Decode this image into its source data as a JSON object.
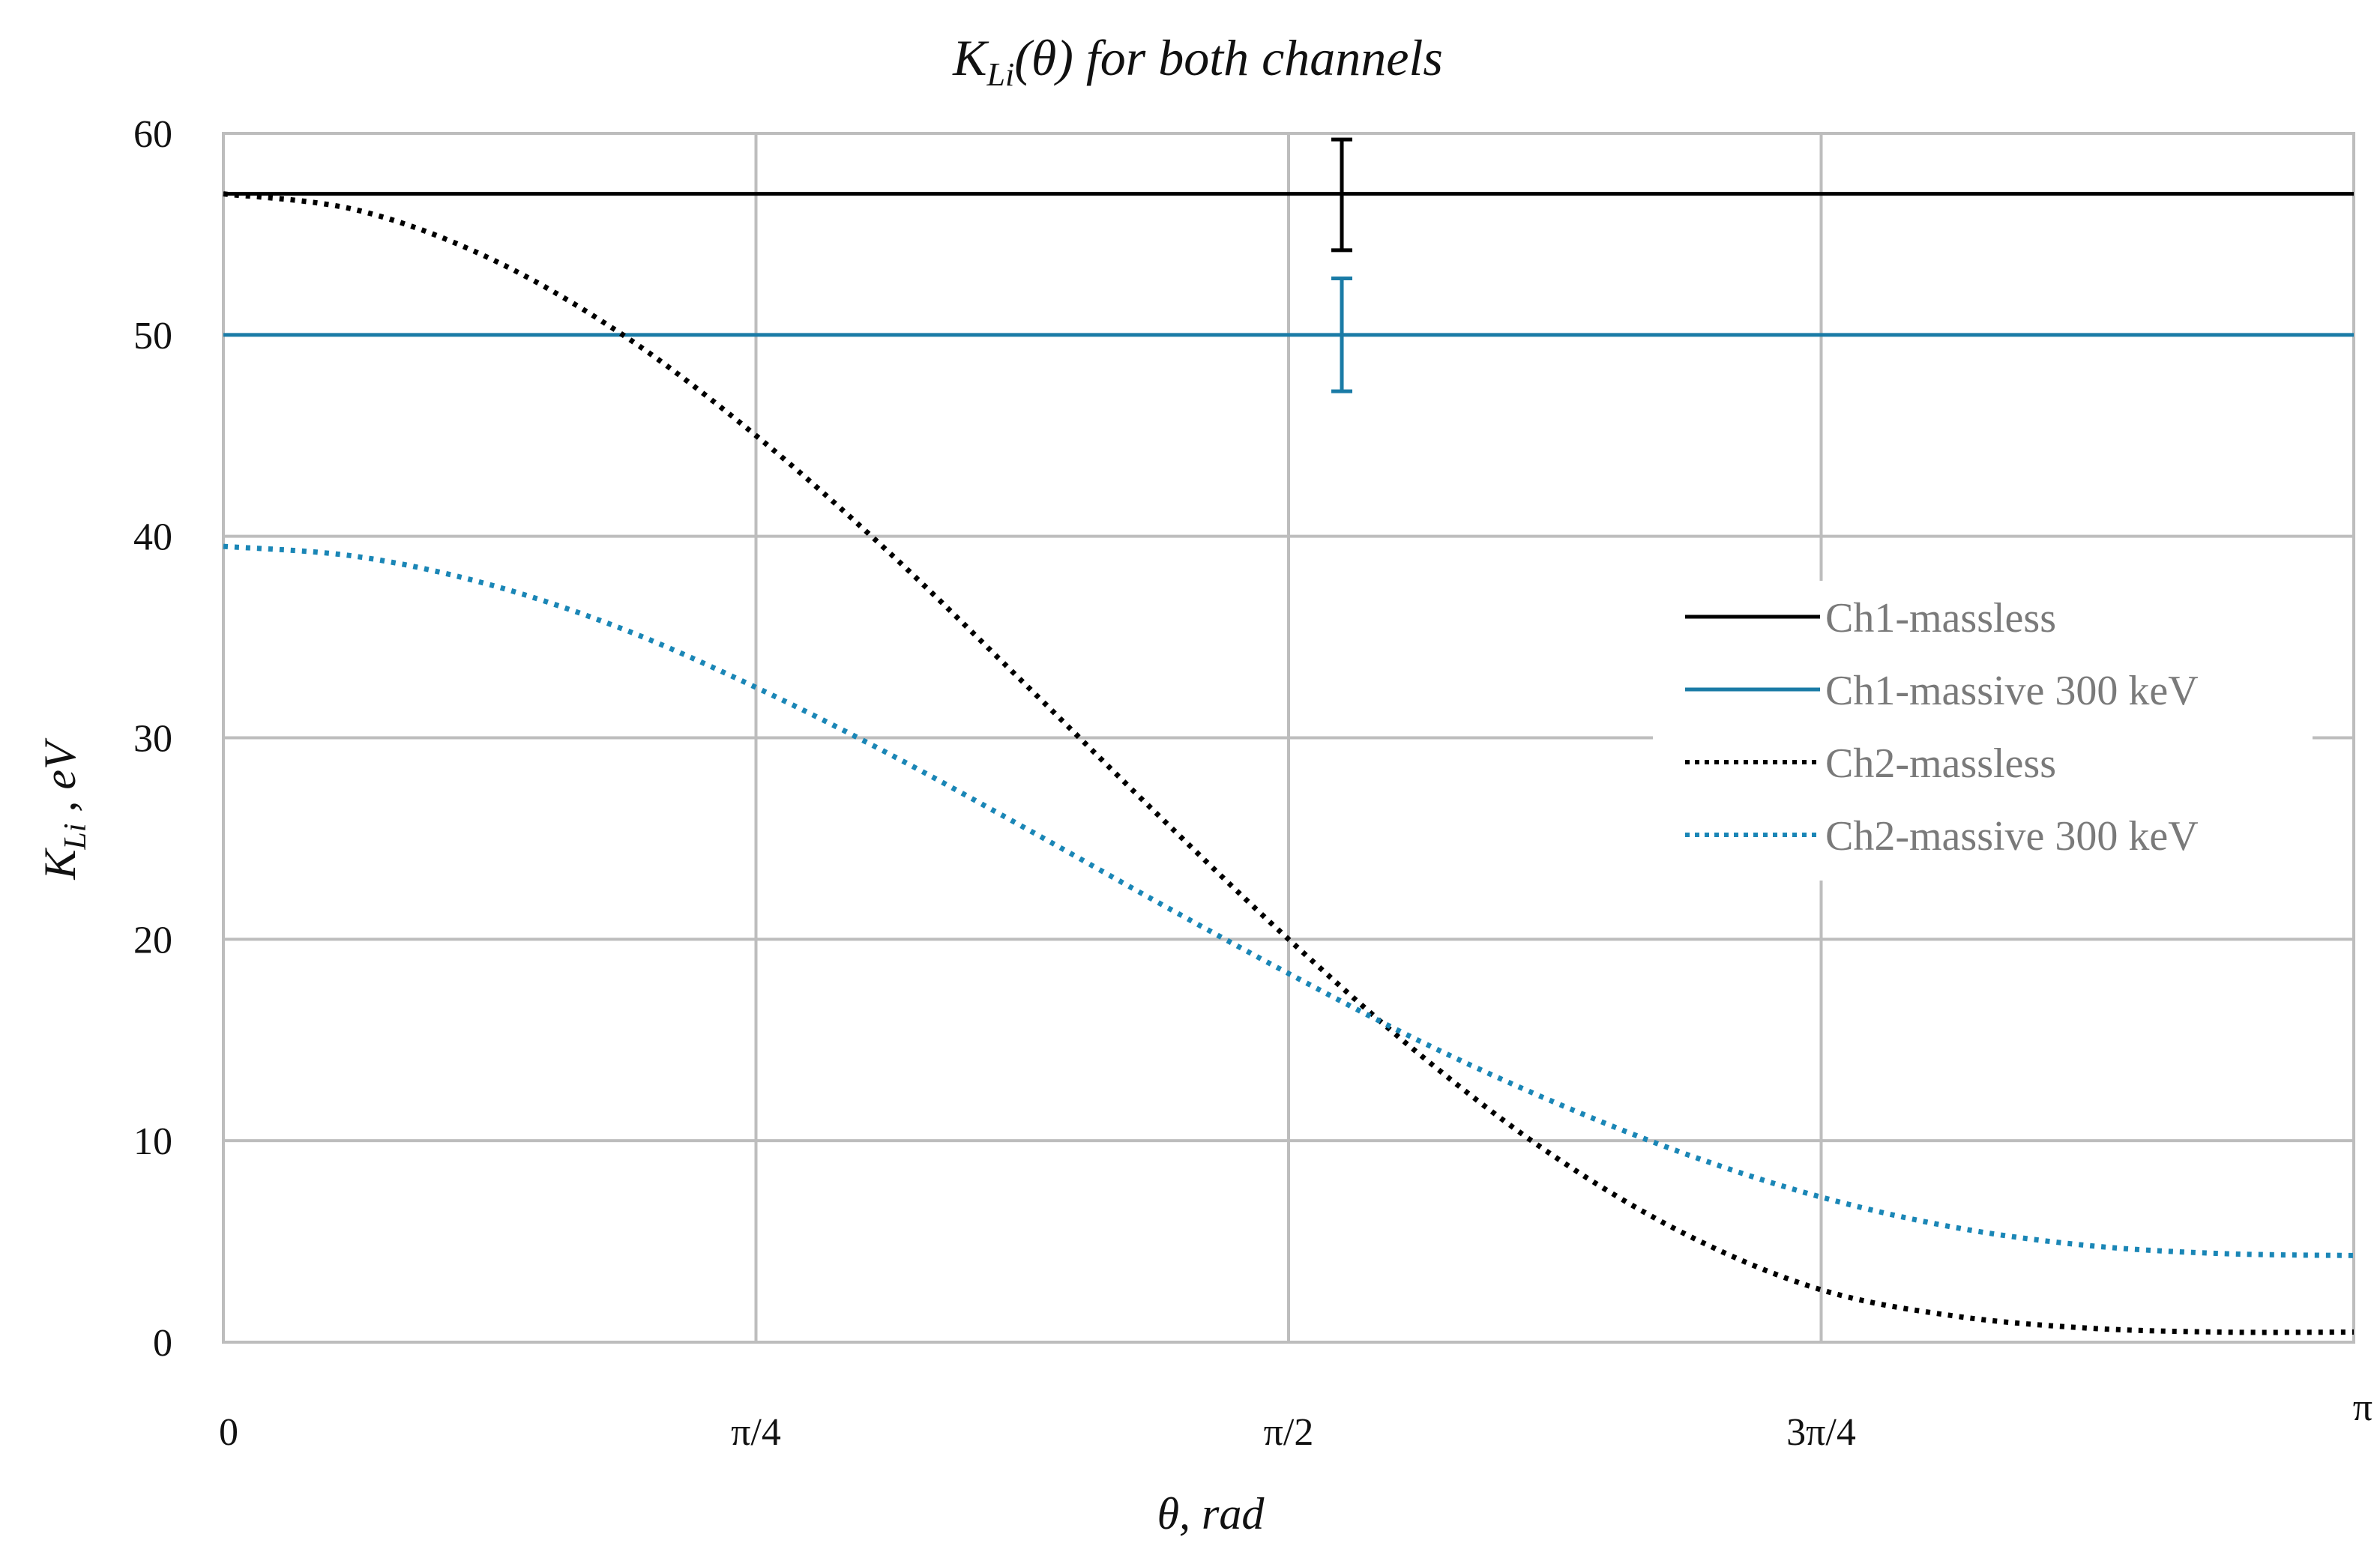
{
  "chart_data": {
    "type": "line",
    "title": "K_Li(θ) for both channels",
    "title_main": "K",
    "title_sub": "Li",
    "title_rest": "(θ) for both channels",
    "xlabel": "θ, rad",
    "ylabel_main": "K",
    "ylabel_sub": "Li",
    "ylabel_rest": " , eV",
    "xlim": [
      0,
      3.14159
    ],
    "ylim": [
      0,
      60
    ],
    "x_ticks": [
      {
        "value": 0,
        "label": "0"
      },
      {
        "value": 0.7854,
        "label": "π/4"
      },
      {
        "value": 1.5708,
        "label": "π/2"
      },
      {
        "value": 2.3562,
        "label": "3π/4"
      },
      {
        "value": 3.14159,
        "label": "π"
      }
    ],
    "y_ticks": [
      {
        "value": 0,
        "label": "0"
      },
      {
        "value": 10,
        "label": "10"
      },
      {
        "value": 20,
        "label": "20"
      },
      {
        "value": 30,
        "label": "30"
      },
      {
        "value": 40,
        "label": "40"
      },
      {
        "value": 50,
        "label": "50"
      },
      {
        "value": 60,
        "label": "60"
      }
    ],
    "grid": true,
    "legend_position": "right",
    "series": [
      {
        "name": "Ch1-massless",
        "color": "#000000",
        "style": "solid",
        "x": [
          0,
          3.14159
        ],
        "y": [
          57,
          57
        ],
        "error_bar": {
          "x": 1.6493,
          "low": 54.2,
          "high": 59.7
        }
      },
      {
        "name": "Ch1-massive 300 keV",
        "color": "#1a7ba6",
        "style": "solid",
        "x": [
          0,
          3.14159
        ],
        "y": [
          50,
          50
        ],
        "error_bar": {
          "x": 1.6493,
          "low": 47.2,
          "high": 52.8
        }
      },
      {
        "name": "Ch2-massless",
        "color": "#000000",
        "style": "dotted",
        "x": [
          0,
          0.1963,
          0.3927,
          0.589,
          0.7854,
          0.9817,
          1.1781,
          1.3744,
          1.5708,
          1.7671,
          1.9635,
          2.1598,
          2.3562,
          2.5525,
          2.7489,
          2.9452,
          3.14159
        ],
        "y": [
          57.0,
          56.2,
          53.8,
          50.0,
          45.0,
          39.2,
          32.8,
          26.3,
          20.0,
          14.2,
          9.2,
          5.3,
          2.6,
          1.3,
          0.7,
          0.5,
          0.5
        ],
        "note_hidden": true
      },
      {
        "name": "Ch2-massive 300 keV",
        "color": "#1a86b6",
        "style": "dotted",
        "x": [
          0,
          0.1963,
          0.3927,
          0.589,
          0.7854,
          0.9817,
          1.1781,
          1.3744,
          1.5708,
          1.7671,
          1.9635,
          2.1598,
          2.3562,
          2.5525,
          2.7489,
          2.9452,
          3.14159
        ],
        "y": [
          39.5,
          39.0,
          37.6,
          35.4,
          32.5,
          29.2,
          25.6,
          21.9,
          18.3,
          14.9,
          11.9,
          9.3,
          7.2,
          5.7,
          4.8,
          4.4,
          4.3
        ]
      }
    ]
  }
}
